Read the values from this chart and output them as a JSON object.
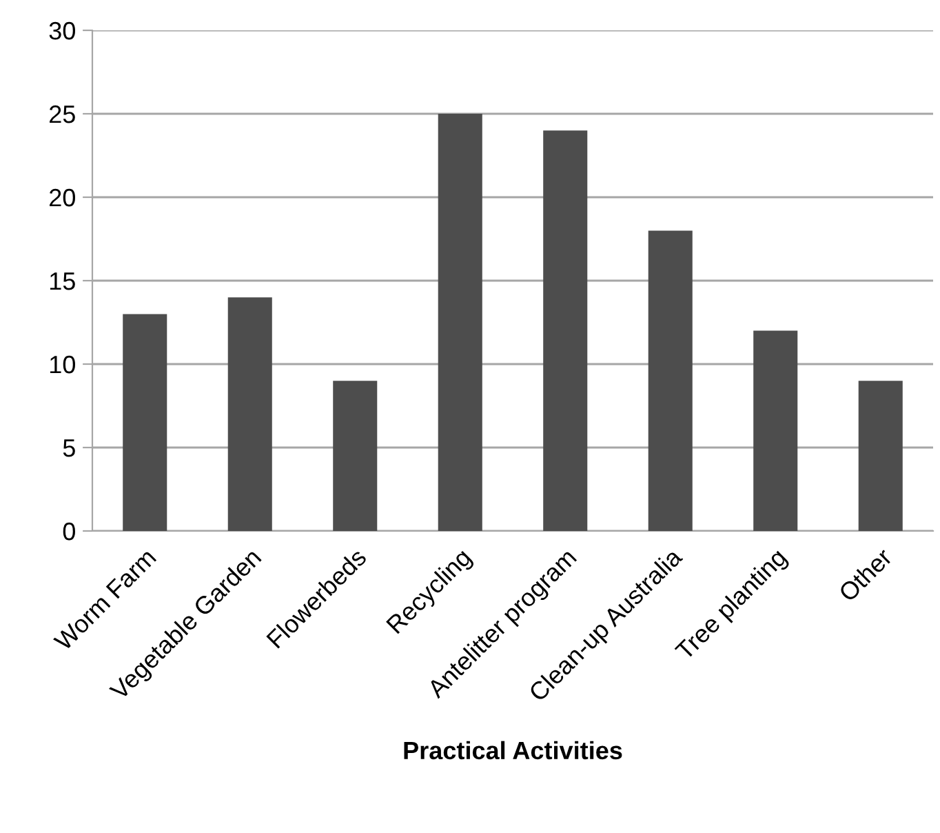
{
  "chart_data": {
    "type": "bar",
    "xlabel": "Practical Activities",
    "categories": [
      "Worm Farm",
      "Vegetable Garden",
      "Flowerbeds",
      "Recycling",
      "Antelitter program",
      "Clean-up Australia",
      "Tree planting",
      "Other"
    ],
    "values": [
      13,
      14,
      9,
      25,
      24,
      18,
      12,
      9
    ],
    "color": "#4d4d4d",
    "ylim": [
      0,
      30
    ],
    "yticks": [
      0,
      5,
      10,
      15,
      20,
      25,
      30
    ],
    "grid": "y",
    "legend": false
  }
}
